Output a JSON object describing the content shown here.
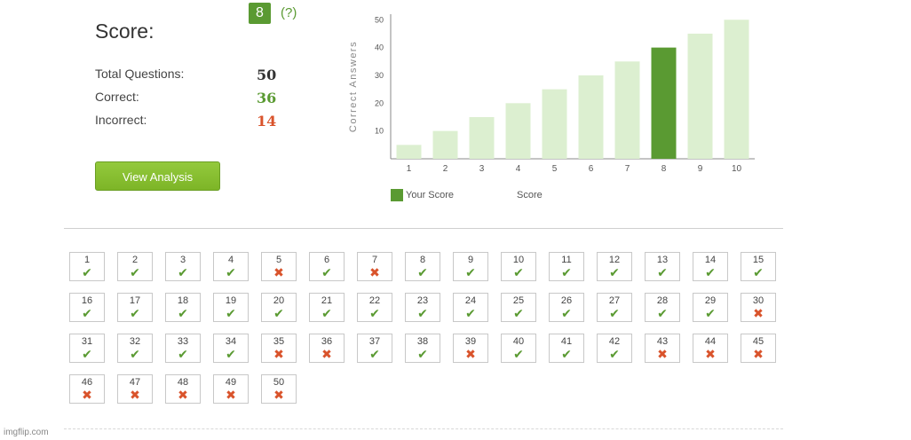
{
  "score": {
    "title": "Score:",
    "value": "8",
    "help": "?"
  },
  "stats": {
    "total_label": "Total Questions:",
    "total_value": "50",
    "correct_label": "Correct:",
    "correct_value": "36",
    "incorrect_label": "Incorrect:",
    "incorrect_value": "14"
  },
  "buttons": {
    "analysis_label": "View Analysis"
  },
  "legend": {
    "your_score": "Your Score",
    "score": "Score"
  },
  "colors": {
    "accent": "#5a9a32",
    "bar_light": "#dcefd0",
    "correct": "#5a9a32",
    "incorrect": "#d9532b",
    "button": "#7db527"
  },
  "chart_data": {
    "type": "bar",
    "categories": [
      "1",
      "2",
      "3",
      "4",
      "5",
      "6",
      "7",
      "8",
      "9",
      "10"
    ],
    "values": [
      5,
      10,
      15,
      20,
      25,
      30,
      35,
      40,
      45,
      50
    ],
    "highlight_category": "8",
    "ylabel": "Correct Answers",
    "yticks": [
      10,
      20,
      30,
      40,
      50
    ],
    "ylim": [
      0,
      52
    ],
    "grid": false
  },
  "questions": [
    {
      "n": "1",
      "ok": true
    },
    {
      "n": "2",
      "ok": true
    },
    {
      "n": "3",
      "ok": true
    },
    {
      "n": "4",
      "ok": true
    },
    {
      "n": "5",
      "ok": false
    },
    {
      "n": "6",
      "ok": true
    },
    {
      "n": "7",
      "ok": false
    },
    {
      "n": "8",
      "ok": true
    },
    {
      "n": "9",
      "ok": true
    },
    {
      "n": "10",
      "ok": true
    },
    {
      "n": "11",
      "ok": true
    },
    {
      "n": "12",
      "ok": true
    },
    {
      "n": "13",
      "ok": true
    },
    {
      "n": "14",
      "ok": true
    },
    {
      "n": "15",
      "ok": true
    },
    {
      "n": "16",
      "ok": true
    },
    {
      "n": "17",
      "ok": true
    },
    {
      "n": "18",
      "ok": true
    },
    {
      "n": "19",
      "ok": true
    },
    {
      "n": "20",
      "ok": true
    },
    {
      "n": "21",
      "ok": true
    },
    {
      "n": "22",
      "ok": true
    },
    {
      "n": "23",
      "ok": true
    },
    {
      "n": "24",
      "ok": true
    },
    {
      "n": "25",
      "ok": true
    },
    {
      "n": "26",
      "ok": true
    },
    {
      "n": "27",
      "ok": true
    },
    {
      "n": "28",
      "ok": true
    },
    {
      "n": "29",
      "ok": true
    },
    {
      "n": "30",
      "ok": false
    },
    {
      "n": "31",
      "ok": true
    },
    {
      "n": "32",
      "ok": true
    },
    {
      "n": "33",
      "ok": true
    },
    {
      "n": "34",
      "ok": true
    },
    {
      "n": "35",
      "ok": false
    },
    {
      "n": "36",
      "ok": false
    },
    {
      "n": "37",
      "ok": true
    },
    {
      "n": "38",
      "ok": true
    },
    {
      "n": "39",
      "ok": false
    },
    {
      "n": "40",
      "ok": true
    },
    {
      "n": "41",
      "ok": true
    },
    {
      "n": "42",
      "ok": true
    },
    {
      "n": "43",
      "ok": false
    },
    {
      "n": "44",
      "ok": false
    },
    {
      "n": "45",
      "ok": false
    },
    {
      "n": "46",
      "ok": false
    },
    {
      "n": "47",
      "ok": false
    },
    {
      "n": "48",
      "ok": false
    },
    {
      "n": "49",
      "ok": false
    },
    {
      "n": "50",
      "ok": false
    }
  ],
  "watermark": "imgflip.com"
}
